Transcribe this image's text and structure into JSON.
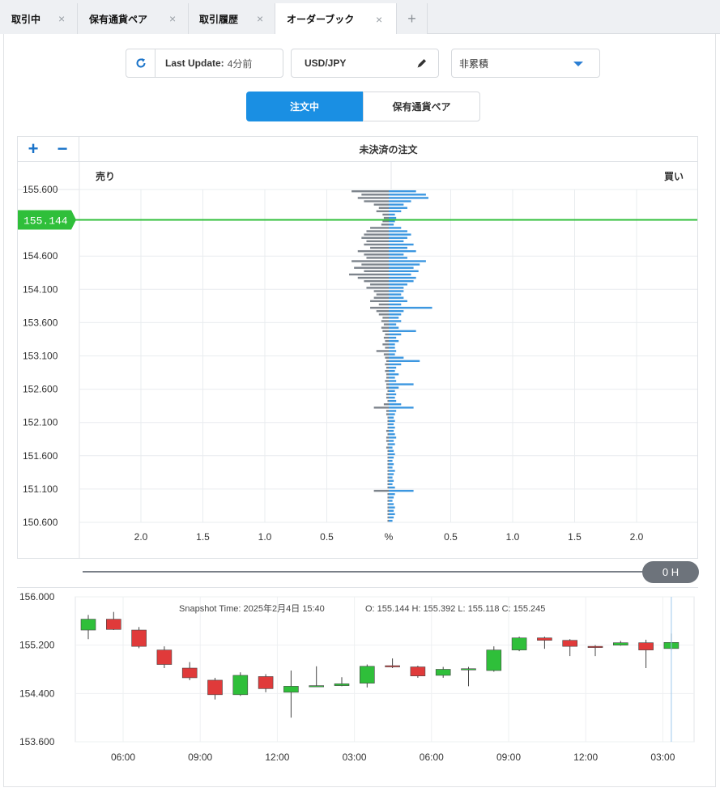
{
  "tabs": [
    {
      "label": "取引中",
      "active": false
    },
    {
      "label": "保有通貨ペア",
      "active": false
    },
    {
      "label": "取引履歴",
      "active": false
    },
    {
      "label": "オーダーブック",
      "active": true
    }
  ],
  "tab_close_glyph": "×",
  "tab_add_glyph": "+",
  "toolbar": {
    "refresh_icon": "refresh-icon",
    "last_update_label": "Last Update:",
    "last_update_value": "4分前",
    "pair_value": "USD/JPY",
    "pair_edit_icon": "pencil-icon",
    "mode_value": "非累積",
    "mode_caret_icon": "caret-down-icon"
  },
  "segmented": {
    "active": "注文中",
    "inactive": "保有通貨ペア"
  },
  "orderbook": {
    "zoom_in": "+",
    "zoom_out": "−",
    "title": "未決済の注文",
    "sell_label": "売り",
    "buy_label": "買い",
    "current_price": "155.144",
    "accent_color": "#2fbf3a",
    "sell_color": "#7d848c",
    "buy_color": "#3c97e0"
  },
  "slider": {
    "value_label": "0 H"
  },
  "chart_data": [
    {
      "type": "bar",
      "title": "未決済の注文",
      "orientation": "horizontal-diverging",
      "y_min": 150.6,
      "y_max": 155.6,
      "y_ticks": [
        "155.600",
        "155.144",
        "154.600",
        "154.100",
        "153.600",
        "153.100",
        "152.600",
        "152.100",
        "151.600",
        "151.100",
        "150.600"
      ],
      "x_ticks": [
        "2.0",
        "1.5",
        "1.0",
        "0.5",
        "%",
        "0.5",
        "1.0",
        "1.5",
        "2.0"
      ],
      "x_max_percent": 2.5,
      "price_step": 0.1,
      "series": [
        {
          "name": "売り",
          "values": [
            0.3,
            0.22,
            0.25,
            0.2,
            0.12,
            0.08,
            0.1,
            0.05,
            0.04,
            0.05,
            0.06,
            0.15,
            0.18,
            0.2,
            0.22,
            0.18,
            0.2,
            0.15,
            0.25,
            0.2,
            0.18,
            0.3,
            0.22,
            0.28,
            0.2,
            0.32,
            0.25,
            0.2,
            0.15,
            0.18,
            0.12,
            0.1,
            0.12,
            0.15,
            0.08,
            0.15,
            0.1,
            0.08,
            0.05,
            0.06,
            0.04,
            0.06,
            0.05,
            0.03,
            0.04,
            0.03,
            0.05,
            0.03,
            0.1,
            0.04,
            0.03,
            0.02,
            0.03,
            0.02,
            0.03,
            0.02,
            0.02,
            0.03,
            0.02,
            0.02,
            0.01,
            0.02,
            0.02,
            0.01,
            0.04,
            0.12,
            0.02,
            0.02,
            0.01,
            0.01,
            0.01,
            0.01,
            0.02,
            0.01,
            0.02,
            0.02,
            0.01,
            0.02,
            0.01,
            0.01,
            0.01,
            0.01,
            0.01,
            0.01,
            0.01,
            0.01,
            0.01,
            0.01,
            0.01,
            0.01,
            0.12,
            0.01,
            0.01,
            0.01,
            0.01,
            0.01,
            0.01,
            0.01,
            0.01,
            0.01
          ]
        },
        {
          "name": "買い",
          "values": [
            0.22,
            0.3,
            0.32,
            0.18,
            0.12,
            0.15,
            0.1,
            0.05,
            0.06,
            0.05,
            0.04,
            0.1,
            0.15,
            0.18,
            0.15,
            0.12,
            0.2,
            0.15,
            0.22,
            0.12,
            0.15,
            0.3,
            0.25,
            0.2,
            0.24,
            0.18,
            0.22,
            0.2,
            0.15,
            0.12,
            0.12,
            0.1,
            0.12,
            0.15,
            0.1,
            0.35,
            0.12,
            0.1,
            0.08,
            0.1,
            0.06,
            0.08,
            0.22,
            0.1,
            0.06,
            0.08,
            0.05,
            0.05,
            0.06,
            0.05,
            0.12,
            0.25,
            0.1,
            0.06,
            0.05,
            0.08,
            0.05,
            0.06,
            0.2,
            0.08,
            0.05,
            0.06,
            0.05,
            0.06,
            0.1,
            0.2,
            0.06,
            0.05,
            0.04,
            0.05,
            0.04,
            0.05,
            0.04,
            0.05,
            0.06,
            0.04,
            0.05,
            0.03,
            0.04,
            0.05,
            0.04,
            0.03,
            0.04,
            0.03,
            0.05,
            0.04,
            0.03,
            0.04,
            0.03,
            0.05,
            0.2,
            0.05,
            0.04,
            0.03,
            0.04,
            0.05,
            0.04,
            0.05,
            0.04,
            0.03
          ]
        }
      ]
    },
    {
      "type": "candlestick",
      "title": "Snapshot Time: 2025年2月4日 15:40",
      "ohlc_label": "O: 155.144   H: 155.392   L: 155.118   C: 155.245",
      "y_ticks": [
        "156.000",
        "155.200",
        "154.400",
        "153.600"
      ],
      "y_min": 153.6,
      "y_max": 156.0,
      "x_ticks": [
        "06:00",
        "09:00",
        "12:00",
        "03:00",
        "06:00",
        "09:00",
        "12:00",
        "03:00"
      ],
      "up_color": "#2fbf3a",
      "down_color": "#e03a3a",
      "candles": [
        {
          "o": 155.45,
          "h": 155.7,
          "l": 155.3,
          "c": 155.63
        },
        {
          "o": 155.63,
          "h": 155.75,
          "l": 155.45,
          "c": 155.46
        },
        {
          "o": 155.45,
          "h": 155.5,
          "l": 155.15,
          "c": 155.18
        },
        {
          "o": 155.12,
          "h": 155.18,
          "l": 154.82,
          "c": 154.88
        },
        {
          "o": 154.82,
          "h": 154.92,
          "l": 154.62,
          "c": 154.66
        },
        {
          "o": 154.62,
          "h": 154.66,
          "l": 154.3,
          "c": 154.38
        },
        {
          "o": 154.38,
          "h": 154.75,
          "l": 154.36,
          "c": 154.7
        },
        {
          "o": 154.68,
          "h": 154.72,
          "l": 154.42,
          "c": 154.48
        },
        {
          "o": 154.42,
          "h": 154.78,
          "l": 154.0,
          "c": 154.52
        },
        {
          "o": 154.52,
          "h": 154.85,
          "l": 154.52,
          "c": 154.53
        },
        {
          "o": 154.53,
          "h": 154.67,
          "l": 154.52,
          "c": 154.56
        },
        {
          "o": 154.57,
          "h": 154.88,
          "l": 154.5,
          "c": 154.85
        },
        {
          "o": 154.86,
          "h": 154.98,
          "l": 154.82,
          "c": 154.84
        },
        {
          "o": 154.84,
          "h": 154.86,
          "l": 154.66,
          "c": 154.69
        },
        {
          "o": 154.7,
          "h": 154.84,
          "l": 154.66,
          "c": 154.8
        },
        {
          "o": 154.8,
          "h": 154.84,
          "l": 154.52,
          "c": 154.81
        },
        {
          "o": 154.78,
          "h": 155.18,
          "l": 154.76,
          "c": 155.12
        },
        {
          "o": 155.12,
          "h": 155.34,
          "l": 155.1,
          "c": 155.32
        },
        {
          "o": 155.32,
          "h": 155.34,
          "l": 155.14,
          "c": 155.28
        },
        {
          "o": 155.28,
          "h": 155.3,
          "l": 155.02,
          "c": 155.18
        },
        {
          "o": 155.18,
          "h": 155.2,
          "l": 155.02,
          "c": 155.17
        },
        {
          "o": 155.2,
          "h": 155.27,
          "l": 155.19,
          "c": 155.24
        },
        {
          "o": 155.24,
          "h": 155.29,
          "l": 154.82,
          "c": 155.12
        },
        {
          "o": 155.144,
          "h": 155.392,
          "l": 155.118,
          "c": 155.245
        }
      ]
    }
  ]
}
